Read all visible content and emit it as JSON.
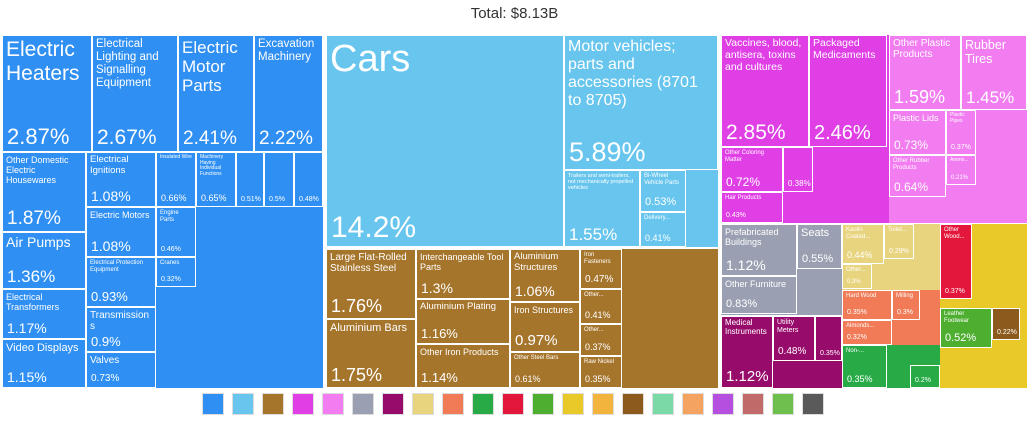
{
  "chart_data": {
    "type": "treemap",
    "title": "Total: $8.13B",
    "tiles": [
      {
        "name": "Electric Heaters",
        "value": 2.87,
        "value_label": "2.87%",
        "color": "#2f8ff2"
      },
      {
        "name": "Electrical Lighting and Signalling Equipment",
        "value": 2.67,
        "value_label": "2.67%",
        "color": "#2f8ff2"
      },
      {
        "name": "Electric Motor Parts",
        "value": 2.41,
        "value_label": "2.41%",
        "color": "#2f8ff2"
      },
      {
        "name": "Excavation Machinery",
        "value": 2.22,
        "value_label": "2.22%",
        "color": "#2f8ff2"
      },
      {
        "name": "Other Domestic Electric Housewares",
        "value": 1.87,
        "value_label": "1.87%",
        "color": "#2f8ff2"
      },
      {
        "name": "Air Pumps",
        "value": 1.36,
        "value_label": "1.36%",
        "color": "#2f8ff2"
      },
      {
        "name": "Electrical Transformers",
        "value": 1.17,
        "value_label": "1.17%",
        "color": "#2f8ff2"
      },
      {
        "name": "Video Displays",
        "value": 1.15,
        "value_label": "1.15%",
        "color": "#2f8ff2"
      },
      {
        "name": "Electrical Ignitions",
        "value": 1.08,
        "value_label": "1.08%",
        "color": "#2f8ff2"
      },
      {
        "name": "Electric Motors",
        "value": 1.08,
        "value_label": "1.08%",
        "color": "#2f8ff2"
      },
      {
        "name": "Electrical Protection Equipment",
        "value": 0.93,
        "value_label": "0.93%",
        "color": "#2f8ff2"
      },
      {
        "name": "Transmissions",
        "value": 0.9,
        "value_label": "0.9%",
        "color": "#2f8ff2"
      },
      {
        "name": "Valves",
        "value": 0.73,
        "value_label": "0.73%",
        "color": "#2f8ff2"
      },
      {
        "name": "Insulated Wire",
        "value": 0.66,
        "value_label": "0.66%",
        "color": "#2f8ff2"
      },
      {
        "name": "Machinery Having Individual Functions",
        "value": 0.65,
        "value_label": "0.65%",
        "color": "#2f8ff2"
      },
      {
        "value": 0.51,
        "value_label": "0.51%",
        "color": "#2f8ff2"
      },
      {
        "value": 0.5,
        "value_label": "0.5%",
        "color": "#2f8ff2"
      },
      {
        "value": 0.48,
        "value_label": "0.48%",
        "color": "#2f8ff2"
      },
      {
        "name": "Engine Parts",
        "value": 0.46,
        "value_label": "0.46%",
        "color": "#2f8ff2"
      },
      {
        "name": "Cranes",
        "value": 0.32,
        "value_label": "0.32%",
        "color": "#2f8ff2"
      },
      {
        "name": "Cars",
        "value": 14.2,
        "value_label": "14.2%",
        "color": "#67c5ee"
      },
      {
        "name": "Motor vehicles; parts and accessories (8701 to 8705)",
        "value": 5.89,
        "value_label": "5.89%",
        "color": "#67c5ee"
      },
      {
        "name": "Trailers and semi-trailers, not mechanically propelled vehicles",
        "value": 1.55,
        "value_label": "1.55%",
        "color": "#67c5ee"
      },
      {
        "name": "Bi-Wheel Vehicle Parts",
        "value": 0.53,
        "value_label": "0.53%",
        "color": "#67c5ee"
      },
      {
        "name": "Delivery...",
        "value": 0.41,
        "value_label": "0.41%",
        "color": "#67c5ee"
      },
      {
        "name": "Large Flat-Rolled Stainless Steel",
        "value": 1.76,
        "value_label": "1.76%",
        "color": "#a6752c"
      },
      {
        "name": "Aluminium Bars",
        "value": 1.75,
        "value_label": "1.75%",
        "color": "#a6752c"
      },
      {
        "name": "Interchangeable Tool Parts",
        "value": 1.3,
        "value_label": "1.3%",
        "color": "#a6752c"
      },
      {
        "name": "Aluminium Plating",
        "value": 1.16,
        "value_label": "1.16%",
        "color": "#a6752c"
      },
      {
        "name": "Other Iron Products",
        "value": 1.14,
        "value_label": "1.14%",
        "color": "#a6752c"
      },
      {
        "name": "Aluminium Structures",
        "value": 1.06,
        "value_label": "1.06%",
        "color": "#a6752c"
      },
      {
        "name": "Iron Structures",
        "value": 0.97,
        "value_label": "0.97%",
        "color": "#a6752c"
      },
      {
        "name": "Other Steel Bars",
        "value": 0.61,
        "value_label": "0.61%",
        "color": "#a6752c"
      },
      {
        "name": "Iron Fasteners",
        "value": 0.47,
        "value_label": "0.47%",
        "color": "#a6752c"
      },
      {
        "name": "Other...",
        "value": 0.41,
        "value_label": "0.41%",
        "color": "#a6752c"
      },
      {
        "name": "Other...",
        "value": 0.37,
        "value_label": "0.37%",
        "color": "#a6752c"
      },
      {
        "name": "Raw Nickel",
        "value": 0.35,
        "value_label": "0.35%",
        "color": "#a6752c"
      },
      {
        "name": "Vaccines, blood, antisera, toxins and cultures",
        "value": 2.85,
        "value_label": "2.85%",
        "color": "#e03fe6"
      },
      {
        "name": "Packaged Medicaments",
        "value": 2.46,
        "value_label": "2.46%",
        "color": "#e03fe6"
      },
      {
        "name": "Other Coloring Matter",
        "value": 0.72,
        "value_label": "0.72%",
        "color": "#e03fe6"
      },
      {
        "value": 0.38,
        "value_label": "0.38%",
        "color": "#e03fe6"
      },
      {
        "name": "Hair Products",
        "value": 0.43,
        "value_label": "0.43%",
        "color": "#e03fe6"
      },
      {
        "name": "Other Plastic Products",
        "value": 1.59,
        "value_label": "1.59%",
        "color": "#f17df0"
      },
      {
        "name": "Rubber Tires",
        "value": 1.45,
        "value_label": "1.45%",
        "color": "#f17df0"
      },
      {
        "name": "Plastic Lids",
        "value": 0.73,
        "value_label": "0.73%",
        "color": "#f17df0"
      },
      {
        "name": "Plastic Pipes",
        "value": 0.37,
        "value_label": "0.37%",
        "color": "#f17df0"
      },
      {
        "name": "Other Rubber Products",
        "value": 0.64,
        "value_label": "0.64%",
        "color": "#f17df0"
      },
      {
        "name": "Ammo...",
        "value": 0.21,
        "value_label": "0.21%",
        "color": "#f17df0"
      },
      {
        "name": "Prefabricated Buildings",
        "value": 1.12,
        "value_label": "1.12%",
        "color": "#9aa0b1"
      },
      {
        "name": "Other Furniture",
        "value": 0.83,
        "value_label": "0.83%",
        "color": "#9aa0b1"
      },
      {
        "name": "Seats",
        "value": 0.55,
        "value_label": "0.55%",
        "color": "#9aa0b1"
      },
      {
        "name": "Kaolin Coated...",
        "value": 0.44,
        "value_label": "0.44%",
        "color": "#e8d47e"
      },
      {
        "name": "Toilet...",
        "value": 0.29,
        "value_label": "0.29%",
        "color": "#e8d47e"
      },
      {
        "name": "Other...",
        "value": 0.3,
        "value_label": "0.3%",
        "color": "#e8d47e"
      },
      {
        "name": "Hard Wood",
        "value": 0.35,
        "value_label": "0.35%",
        "color": "#f07b56"
      },
      {
        "name": "Milling",
        "value": 0.3,
        "value_label": "0.3%",
        "color": "#f07b56"
      },
      {
        "name": "Almonds...",
        "value": 0.32,
        "value_label": "0.32%",
        "color": "#f07b56"
      },
      {
        "name": "Medical Instruments",
        "value": 1.12,
        "value_label": "1.12%",
        "color": "#970b6b"
      },
      {
        "name": "Utility Meters",
        "value": 0.48,
        "value_label": "0.48%",
        "color": "#970b6b"
      },
      {
        "value": 0.35,
        "value_label": "0.35%",
        "color": "#970b6b"
      },
      {
        "name": "Non-...",
        "value": 0.35,
        "value_label": "0.35%",
        "color": "#28ab47"
      },
      {
        "value": 0.2,
        "value_label": "0.2%",
        "color": "#28ab47"
      },
      {
        "name": "Other Wood...",
        "value": 0.37,
        "value_label": "0.37%",
        "color": "#e3173b"
      },
      {
        "name": "Leather Footwear",
        "value": 0.52,
        "value_label": "0.52%",
        "color": "#4dae30"
      },
      {
        "value": 0.22,
        "value_label": "0.22%",
        "color": "#8d5a1d"
      }
    ]
  }
}
